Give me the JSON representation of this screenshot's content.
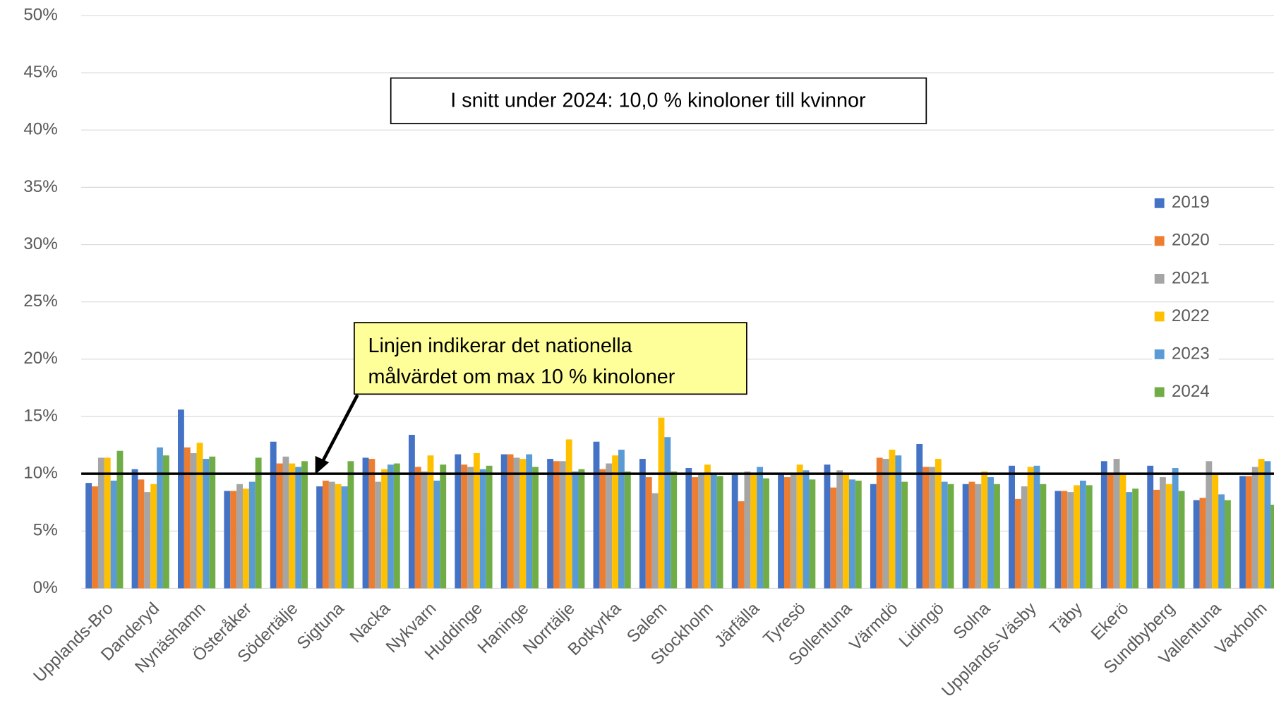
{
  "chart_data": {
    "type": "bar",
    "categories": [
      "Upplands-Bro",
      "Danderyd",
      "Nynäshamn",
      "Österåker",
      "Södertälje",
      "Sigtuna",
      "Nacka",
      "Nykvarn",
      "Huddinge",
      "Haninge",
      "Norrtälje",
      "Botkyrka",
      "Salem",
      "Stockholm",
      "Järfälla",
      "Tyresö",
      "Sollentuna",
      "Värmdö",
      "Lidingö",
      "Solna",
      "Upplands-Väsby",
      "Täby",
      "Ekerö",
      "Sundbyberg",
      "Vallentuna",
      "Vaxholm"
    ],
    "series": [
      {
        "name": "2019",
        "color": "#4472c4",
        "values": [
          9.2,
          10.4,
          15.6,
          8.5,
          12.8,
          8.9,
          11.4,
          13.4,
          11.7,
          11.7,
          11.3,
          12.8,
          11.3,
          10.5,
          10.1,
          10.1,
          10.8,
          9.1,
          12.6,
          9.1,
          10.7,
          8.5,
          11.1,
          10.7,
          7.7,
          9.8
        ]
      },
      {
        "name": "2020",
        "color": "#ed7d31",
        "values": [
          8.9,
          9.5,
          12.3,
          8.5,
          10.9,
          9.4,
          11.3,
          10.6,
          10.8,
          11.7,
          11.1,
          10.4,
          9.7,
          9.7,
          7.6,
          9.7,
          8.8,
          11.4,
          10.6,
          9.3,
          7.8,
          8.5,
          10.0,
          8.6,
          7.9,
          9.8
        ]
      },
      {
        "name": "2021",
        "color": "#a5a5a5",
        "values": [
          11.4,
          8.4,
          11.8,
          9.1,
          11.5,
          9.3,
          9.3,
          10.2,
          10.6,
          11.4,
          11.1,
          10.9,
          8.3,
          10.0,
          10.2,
          9.9,
          10.3,
          11.3,
          10.6,
          9.1,
          8.9,
          8.4,
          11.3,
          9.7,
          11.1,
          10.6
        ]
      },
      {
        "name": "2022",
        "color": "#ffc000",
        "values": [
          11.4,
          9.1,
          12.7,
          8.7,
          10.9,
          9.1,
          10.4,
          11.6,
          11.8,
          11.3,
          13.0,
          11.6,
          14.9,
          10.8,
          10.0,
          10.8,
          10.1,
          12.1,
          11.3,
          10.2,
          10.6,
          9.0,
          10.0,
          9.1,
          10.1,
          11.3
        ]
      },
      {
        "name": "2023",
        "color": "#5b9bd5",
        "values": [
          9.4,
          12.3,
          11.3,
          9.3,
          10.6,
          8.9,
          10.8,
          9.4,
          10.4,
          11.7,
          10.2,
          12.1,
          13.2,
          10.1,
          10.6,
          10.3,
          9.5,
          11.6,
          9.3,
          9.7,
          10.7,
          9.4,
          8.4,
          10.5,
          8.2,
          11.1
        ]
      },
      {
        "name": "2024",
        "color": "#70ad47",
        "values": [
          12.0,
          11.6,
          11.5,
          11.4,
          11.1,
          11.1,
          10.9,
          10.8,
          10.7,
          10.6,
          10.4,
          10.2,
          10.2,
          9.8,
          9.6,
          9.5,
          9.4,
          9.3,
          9.1,
          9.1,
          9.1,
          9.0,
          8.7,
          8.5,
          7.7,
          7.3
        ]
      }
    ],
    "ylim": [
      0,
      50
    ],
    "yticks": [
      {
        "value": 0,
        "label": "0%"
      },
      {
        "value": 5,
        "label": "5%"
      },
      {
        "value": 10,
        "label": "10%"
      },
      {
        "value": 15,
        "label": "15%"
      },
      {
        "value": 20,
        "label": "20%"
      },
      {
        "value": 25,
        "label": "25%"
      },
      {
        "value": 30,
        "label": "30%"
      },
      {
        "value": 35,
        "label": "35%"
      },
      {
        "value": 40,
        "label": "40%"
      },
      {
        "value": 45,
        "label": "45%"
      },
      {
        "value": 50,
        "label": "50%"
      }
    ],
    "grid": true,
    "reference_line": 10,
    "legend": "right",
    "annotation_average": "I snitt under 2024: 10,0 % kinoloner till kvinnor",
    "annotation_line": [
      "Linjen indikerar det nationella",
      "målvärdet om max 10 % kinoloner"
    ]
  }
}
